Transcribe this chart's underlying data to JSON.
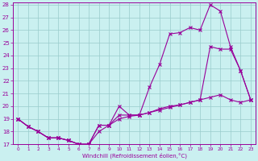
{
  "xlabel": "Windchill (Refroidissement éolien,°C)",
  "bg_color": "#caf0f0",
  "line_color": "#990099",
  "grid_color": "#99cccc",
  "xlim": [
    -0.5,
    23.5
  ],
  "ylim": [
    17,
    28.2
  ],
  "yticks": [
    17,
    18,
    19,
    20,
    21,
    22,
    23,
    24,
    25,
    26,
    27,
    28
  ],
  "xticks": [
    0,
    1,
    2,
    3,
    4,
    5,
    6,
    7,
    8,
    9,
    10,
    11,
    12,
    13,
    14,
    15,
    16,
    17,
    18,
    19,
    20,
    21,
    22,
    23
  ],
  "line1_x": [
    0,
    1,
    2,
    3,
    4,
    5,
    6,
    7,
    8,
    9,
    10,
    11,
    12,
    13,
    14,
    15,
    16,
    17,
    18,
    19,
    20,
    21,
    22,
    23
  ],
  "line1_y": [
    19.0,
    18.4,
    18.0,
    17.5,
    17.5,
    17.3,
    17.0,
    17.0,
    18.5,
    18.5,
    20.0,
    19.3,
    19.3,
    21.5,
    23.3,
    25.7,
    25.8,
    26.2,
    26.0,
    28.0,
    27.5,
    24.7,
    22.8,
    20.5
  ],
  "line2_x": [
    0,
    1,
    2,
    3,
    4,
    5,
    6,
    7,
    8,
    9,
    10,
    11,
    12,
    13,
    14,
    15,
    16,
    17,
    18,
    19,
    20,
    21,
    22,
    23
  ],
  "line2_y": [
    19.0,
    18.4,
    18.0,
    17.5,
    17.5,
    17.3,
    17.0,
    17.0,
    18.5,
    18.5,
    19.3,
    19.3,
    19.3,
    19.5,
    19.8,
    20.0,
    20.1,
    20.3,
    20.5,
    24.7,
    24.5,
    24.5,
    22.8,
    20.5
  ],
  "line3_x": [
    0,
    1,
    2,
    3,
    4,
    5,
    6,
    7,
    8,
    9,
    10,
    11,
    12,
    13,
    14,
    15,
    16,
    17,
    18,
    19,
    20,
    21,
    22,
    23
  ],
  "line3_y": [
    19.0,
    18.4,
    18.0,
    17.5,
    17.5,
    17.3,
    17.0,
    17.0,
    18.0,
    18.5,
    19.0,
    19.2,
    19.3,
    19.5,
    19.7,
    19.9,
    20.1,
    20.3,
    20.5,
    20.7,
    20.9,
    20.5,
    20.3,
    20.5
  ]
}
